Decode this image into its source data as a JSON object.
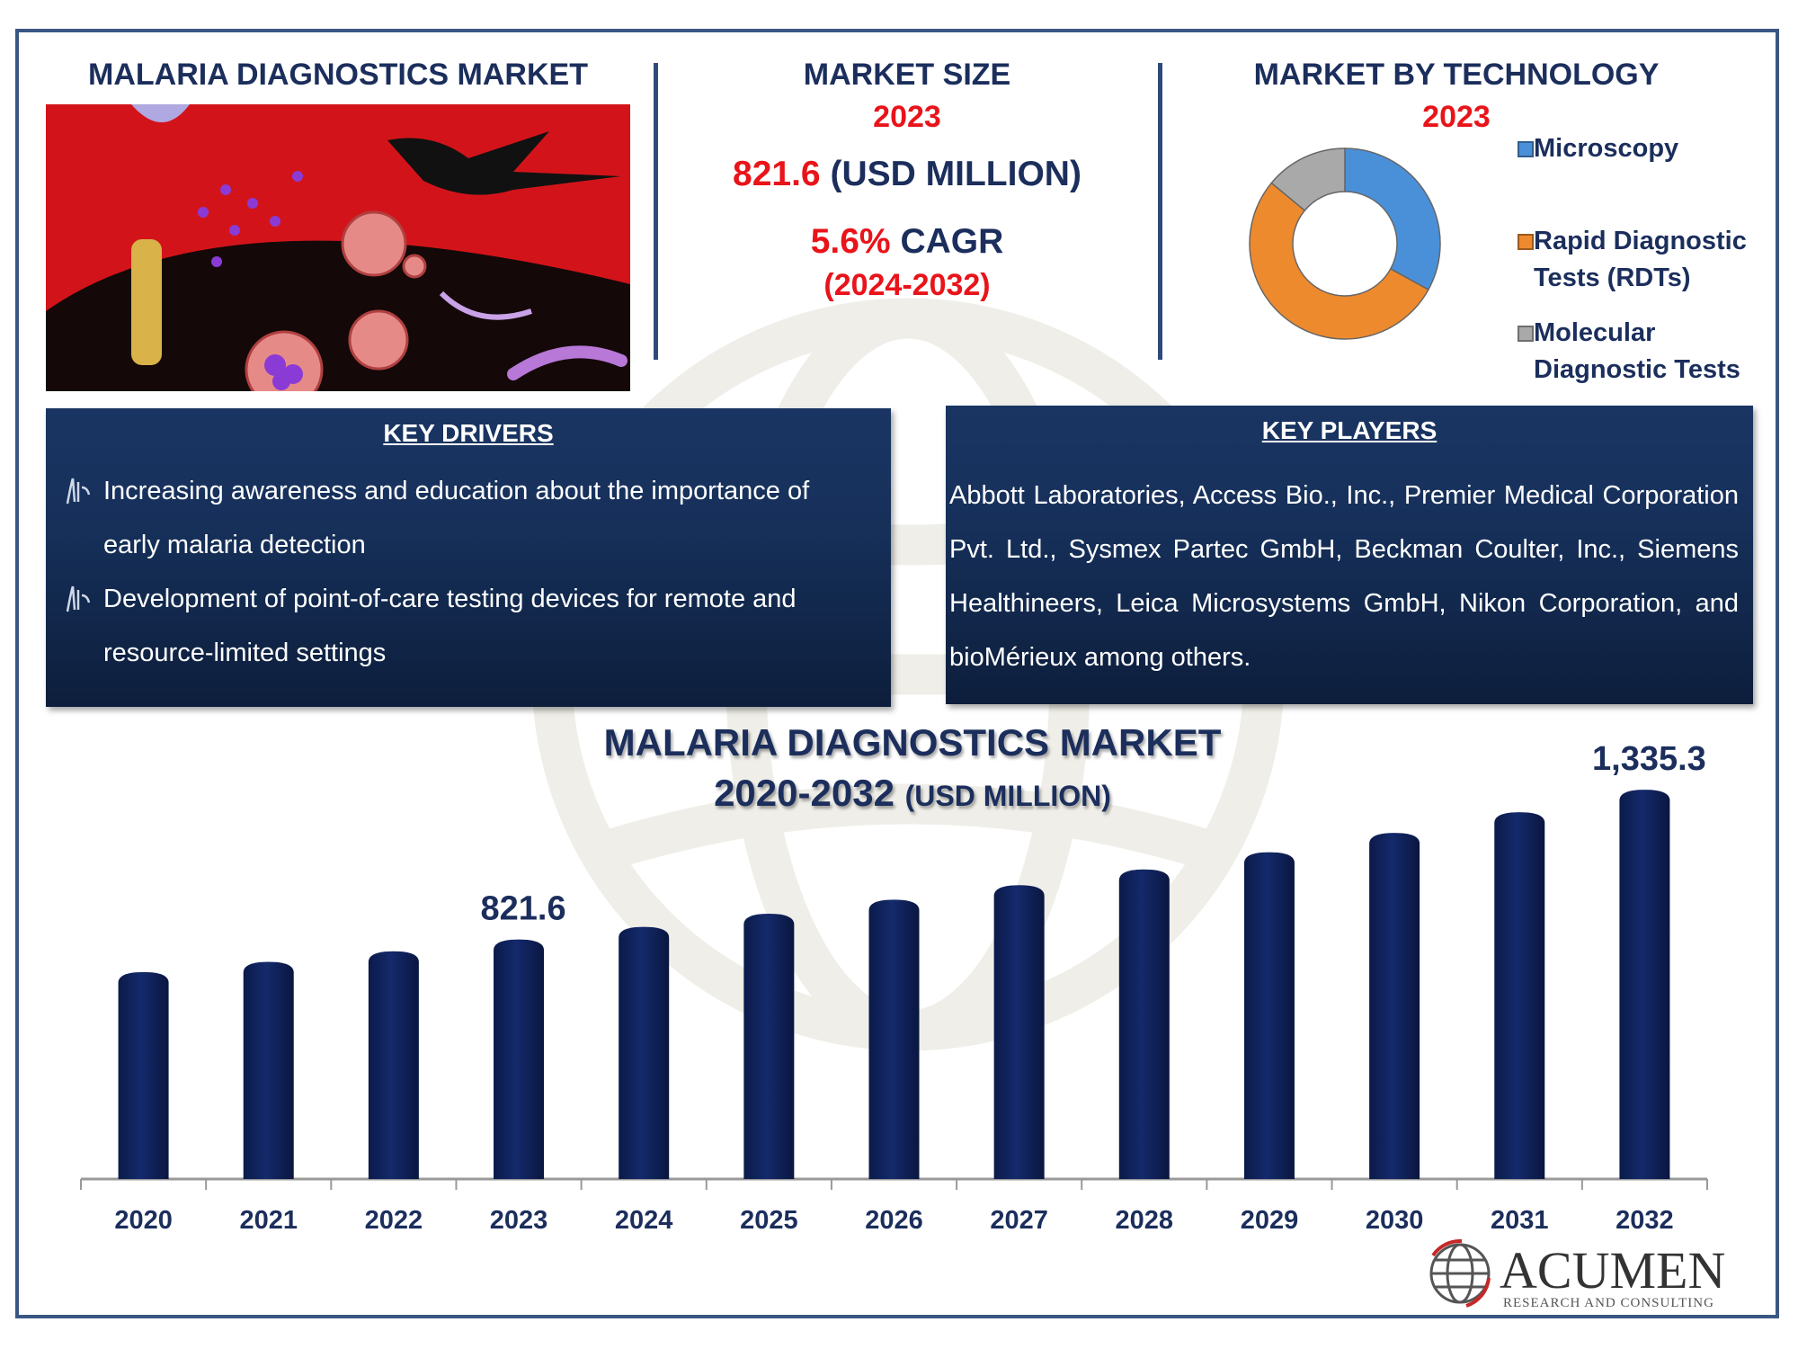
{
  "header": {
    "left_title": "MALARIA DIAGNOSTICS MARKET",
    "market_size": {
      "title": "MARKET SIZE",
      "year": "2023",
      "value": "821.6",
      "unit": "(USD MILLION)",
      "cagr_value": "5.6%",
      "cagr_label": "CAGR",
      "cagr_period": "(2024-2032)"
    },
    "technology": {
      "title": "MARKET BY TECHNOLOGY",
      "year": "2023"
    }
  },
  "donut": {
    "type": "pie",
    "segments": [
      {
        "name": "Microscopy",
        "share": 33,
        "color": "#4a90d9"
      },
      {
        "name": "Rapid Diagnostic Tests (RDTs)",
        "share": 53,
        "color": "#ee8a2e"
      },
      {
        "name": "Molecular Diagnostic Tests",
        "share": 14,
        "color": "#a9a9a9"
      }
    ],
    "legend": [
      {
        "line1": "Microscopy",
        "line2": ""
      },
      {
        "line1": "Rapid Diagnostic",
        "line2": "Tests (RDTs)"
      },
      {
        "line1": "Molecular",
        "line2": "Diagnostic Tests"
      }
    ]
  },
  "key_drivers": {
    "title": "KEY DRIVERS",
    "items": [
      "Increasing awareness and education about the importance of early malaria detection",
      "Development of point-of-care testing devices for remote and resource-limited settings"
    ]
  },
  "key_players": {
    "title": "KEY PLAYERS",
    "text": "Abbott Laboratories, Access Bio., Inc., Premier Medical Corporation Pvt. Ltd., Sysmex Partec GmbH, Beckman Coulter, Inc., Siemens Healthineers, Leica Microsystems GmbH, Nikon Corporation, and bioMérieux among others."
  },
  "chart_data": {
    "type": "bar",
    "title": "MALARIA DIAGNOSTICS MARKET",
    "subtitle_years": "2020-2032",
    "subtitle_unit": "(USD MILLION)",
    "categories": [
      "2020",
      "2021",
      "2022",
      "2023",
      "2024",
      "2025",
      "2026",
      "2027",
      "2028",
      "2029",
      "2030",
      "2031",
      "2032"
    ],
    "values": [
      710,
      745,
      781,
      821.6,
      865,
      910,
      958,
      1008,
      1062,
      1121,
      1187,
      1258,
      1335.3
    ],
    "data_labels": {
      "2023": "821.6",
      "2032": "1,335.3"
    },
    "ylim": [
      0,
      1400
    ],
    "grid": false,
    "bar_color": "#142a6b"
  },
  "logo": {
    "name": "ACUMEN",
    "tagline": "RESEARCH AND CONSULTING"
  }
}
